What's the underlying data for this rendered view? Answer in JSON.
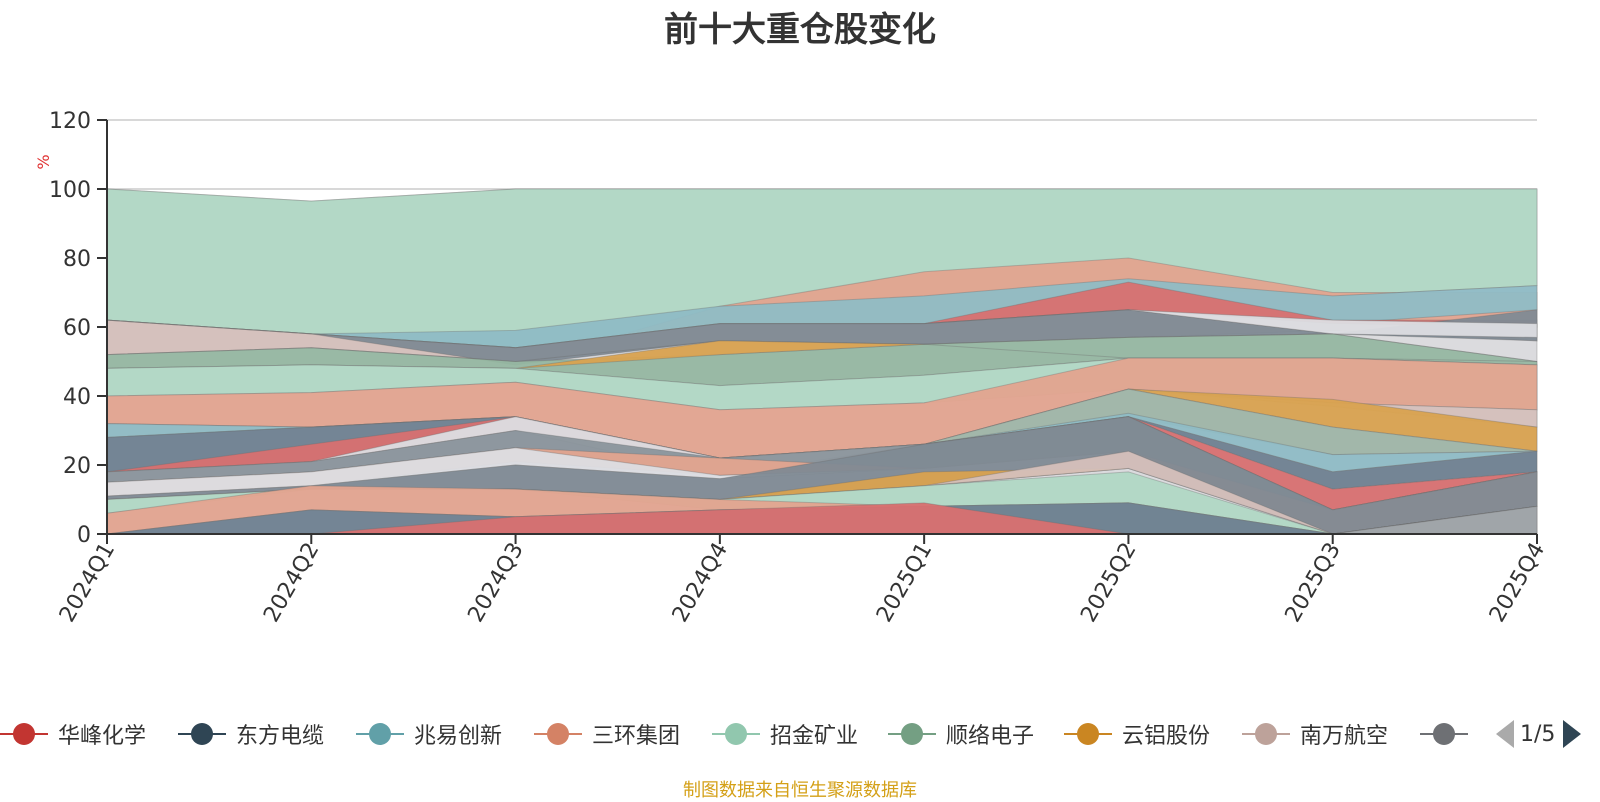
{
  "title": "前十大重仓股变化",
  "source_note": "制图数据来自恒生聚源数据库",
  "legend_page": "1/5",
  "chart_data": {
    "type": "area",
    "title": "前十大重仓股变化",
    "xlabel": "",
    "ylabel": "%",
    "ylim": [
      0,
      120
    ],
    "yticks": [
      0,
      20,
      40,
      60,
      80,
      100,
      120
    ],
    "grid": true,
    "x": [
      "2024Q1",
      "2024Q2",
      "2024Q3",
      "2024Q4",
      "2025Q1",
      "2025Q2",
      "2025Q3",
      "2025Q4"
    ],
    "bands": [
      {
        "color": "#d9d9dc",
        "upper": [
          100,
          96.5,
          100,
          100,
          100,
          100,
          100,
          100
        ],
        "lower": [
          0,
          0,
          0,
          0,
          0,
          0,
          0,
          0
        ]
      },
      {
        "color": "#b1d8c4",
        "upper": [
          100,
          96.5,
          100,
          100,
          100,
          100,
          100,
          100
        ],
        "lower": [
          62,
          58,
          49,
          61,
          61,
          72,
          69,
          72
        ]
      },
      {
        "color": "#e3a48f",
        "upper": [
          62,
          58,
          49,
          66,
          76,
          80,
          70,
          70
        ],
        "lower": [
          62,
          58,
          49,
          60,
          61,
          65,
          61,
          60
        ]
      },
      {
        "color": "#8fbcc5",
        "upper": [
          62,
          58,
          59,
          66,
          69,
          74,
          69,
          72
        ],
        "lower": [
          62,
          58,
          54,
          60,
          61,
          65,
          61,
          65
        ]
      },
      {
        "color": "#d87070",
        "upper": [
          62,
          58,
          54,
          61,
          61,
          73,
          62,
          62
        ],
        "lower": [
          62,
          58,
          54,
          61,
          61,
          65,
          61,
          60
        ]
      },
      {
        "color": "#d5c0ba",
        "upper": [
          62,
          58,
          54,
          61,
          61,
          65,
          61,
          60
        ],
        "lower": [
          52,
          54,
          50,
          56,
          55,
          57,
          59,
          56
        ]
      },
      {
        "color": "#7f8a94",
        "upper": [
          62,
          58,
          54,
          61,
          61,
          65,
          58,
          65
        ],
        "lower": [
          62,
          58,
          49,
          56,
          55,
          57,
          58,
          56
        ]
      },
      {
        "color": "#dcdde2",
        "upper": [
          62,
          58,
          54,
          61,
          61,
          65,
          62,
          61
        ],
        "lower": [
          62,
          58,
          54,
          61,
          61,
          65,
          58,
          57
        ]
      },
      {
        "color": "#96b7a1",
        "upper": [
          52,
          54,
          50,
          52,
          55,
          57,
          58,
          50
        ],
        "lower": [
          48,
          49,
          48,
          43,
          46,
          51,
          51,
          49
        ]
      },
      {
        "color": "#a2a6aa",
        "upper": [
          52,
          54,
          50,
          56,
          55,
          57,
          58,
          50
        ],
        "lower": [
          52,
          54,
          50,
          56,
          55,
          57,
          58,
          50
        ]
      },
      {
        "color": "#d9a24f",
        "upper": [
          48,
          49,
          48,
          56,
          55,
          51,
          51,
          50
        ],
        "lower": [
          48,
          49,
          48,
          52,
          55,
          51,
          51,
          50
        ]
      },
      {
        "color": "#b1d8c4",
        "upper": [
          48,
          49,
          48,
          43,
          46,
          51,
          51,
          49
        ],
        "lower": [
          40,
          41,
          44,
          36,
          38,
          42,
          39,
          36
        ]
      },
      {
        "color": "#e3a48f",
        "upper": [
          40,
          41,
          44,
          36,
          38,
          51,
          51,
          49
        ],
        "lower": [
          32,
          31,
          34,
          22,
          26,
          42,
          38,
          36
        ]
      },
      {
        "color": "#d5c0ba",
        "upper": [
          32,
          31,
          34,
          22,
          26,
          42,
          38,
          36
        ],
        "lower": [
          28,
          31,
          34,
          22,
          26,
          42,
          37,
          31
        ]
      },
      {
        "color": "#d9a24f",
        "upper": [
          28,
          31,
          34,
          22,
          26,
          42,
          39,
          31
        ],
        "lower": [
          28,
          31,
          34,
          22,
          26,
          42,
          31,
          24
        ]
      },
      {
        "color": "#9fb5a6",
        "upper": [
          28,
          31,
          34,
          22,
          26,
          42,
          31,
          24
        ],
        "lower": [
          28,
          31,
          34,
          22,
          26,
          34,
          23,
          24
        ]
      },
      {
        "color": "#8fbcc5",
        "upper": [
          32,
          31,
          34,
          22,
          26,
          35,
          23,
          24
        ],
        "lower": [
          28,
          31,
          34,
          22,
          26,
          34,
          18,
          24
        ]
      },
      {
        "color": "#6f8190",
        "upper": [
          28,
          31,
          34,
          22,
          26,
          34,
          18,
          24
        ],
        "lower": [
          18,
          21,
          30,
          22,
          26,
          34,
          13,
          18
        ]
      },
      {
        "color": "#d87070",
        "upper": [
          18,
          26,
          34,
          22,
          26,
          34,
          13,
          18
        ],
        "lower": [
          18,
          21,
          30,
          22,
          26,
          34,
          7,
          18
        ]
      },
      {
        "color": "#dcdde2",
        "upper": [
          18,
          21,
          34,
          22,
          26,
          34,
          7,
          18
        ],
        "lower": [
          18,
          21,
          30,
          17,
          26,
          34,
          7,
          18
        ]
      },
      {
        "color": "#8a939b",
        "upper": [
          18,
          21,
          30,
          22,
          26,
          34,
          7,
          18
        ],
        "lower": [
          15,
          18,
          25,
          17,
          19,
          24,
          0,
          8
        ]
      },
      {
        "color": "#e3a48f",
        "upper": [
          15,
          18,
          25,
          22,
          19,
          24,
          7,
          18
        ],
        "lower": [
          11,
          14,
          21,
          17,
          19,
          24,
          0,
          8
        ]
      },
      {
        "color": "#dcdde2",
        "upper": [
          15,
          18,
          25,
          17,
          19,
          24,
          0,
          8
        ],
        "lower": [
          11,
          14,
          20,
          16,
          19,
          24,
          0,
          8
        ]
      },
      {
        "color": "#7f8a94",
        "upper": [
          11,
          14,
          20,
          16,
          26,
          34,
          7,
          18
        ],
        "lower": [
          10,
          13,
          13,
          10,
          14,
          19,
          0,
          8
        ]
      },
      {
        "color": "#d9a24f",
        "upper": [
          10,
          13,
          13,
          10,
          18,
          19,
          0,
          8
        ],
        "lower": [
          10,
          13,
          13,
          10,
          14,
          19,
          0,
          8
        ]
      },
      {
        "color": "#d5c0ba",
        "upper": [
          10,
          13,
          13,
          10,
          14,
          24,
          0,
          8
        ],
        "lower": [
          10,
          13,
          13,
          10,
          14,
          19,
          0,
          8
        ]
      },
      {
        "color": "#b1d8c4",
        "upper": [
          10,
          13,
          13,
          10,
          14,
          18,
          0,
          8
        ],
        "lower": [
          6,
          13,
          13,
          7,
          8,
          9,
          0,
          8
        ]
      },
      {
        "color": "#e3a48f",
        "upper": [
          6,
          14,
          13,
          10,
          8,
          9,
          0,
          8
        ],
        "lower": [
          0,
          7,
          5,
          7,
          8,
          9,
          0,
          8
        ]
      },
      {
        "color": "#8fbcc5",
        "upper": [
          0,
          7,
          5,
          7,
          8,
          9,
          0,
          8
        ],
        "lower": [
          0,
          7,
          5,
          7,
          8,
          0,
          0,
          8
        ]
      },
      {
        "color": "#6f8190",
        "upper": [
          0,
          7,
          5,
          7,
          8,
          9,
          0,
          8
        ],
        "lower": [
          0,
          0,
          0,
          0,
          0,
          0,
          0,
          0
        ]
      },
      {
        "color": "#d87070",
        "upper": [
          0,
          0,
          5,
          7,
          9,
          0,
          0,
          0
        ],
        "lower": [
          0,
          0,
          0,
          0,
          0,
          0,
          0,
          0
        ]
      },
      {
        "color": "#a2a6aa",
        "upper": [
          0,
          0,
          0,
          0,
          0,
          0,
          0,
          8
        ],
        "lower": [
          0,
          0,
          0,
          0,
          0,
          0,
          0,
          0
        ]
      }
    ],
    "legend": [
      {
        "name": "华峰化学",
        "color": "#c23531"
      },
      {
        "name": "东方电缆",
        "color": "#2f4554"
      },
      {
        "name": "兆易创新",
        "color": "#61a0a8"
      },
      {
        "name": "三环集团",
        "color": "#d48265"
      },
      {
        "name": "招金矿业",
        "color": "#91c7ae"
      },
      {
        "name": "顺络电子",
        "color": "#749f83"
      },
      {
        "name": "云铝股份",
        "color": "#ca8622"
      },
      {
        "name": "南万航空",
        "color": "#bda29a"
      },
      {
        "name": "",
        "color": "#6e7074"
      }
    ],
    "legend_position": "bottom"
  }
}
